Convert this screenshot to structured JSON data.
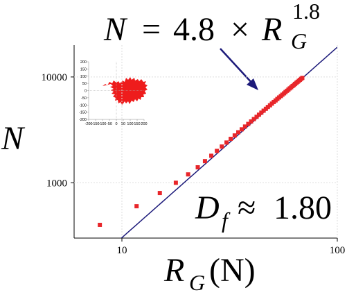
{
  "chart_data": {
    "type": "scatter",
    "annotation": {
      "lhs": "N",
      "operators": [
        "=",
        "×"
      ],
      "coefficient": 4.8,
      "symbol": "R",
      "subscript": "G",
      "exponent": 1.8
    },
    "dimension_label": {
      "symbol": "D",
      "subscript": "f",
      "relation": "≈",
      "value": "1.80"
    },
    "x_label": {
      "symbol": "R",
      "subscript": "G",
      "rest": "(N)"
    },
    "y_label": "N",
    "log_x": true,
    "log_y": true,
    "grid": true,
    "xlim": [
      6,
      100
    ],
    "ylim": [
      300,
      20000
    ],
    "xticks": [
      10,
      100
    ],
    "yticks": [
      1000,
      10000
    ],
    "color": "#e8262a",
    "fit_color": "#1c1a7a",
    "fit": {
      "coefficient": 4.8,
      "exponent": 1.8
    },
    "x": [
      7.9,
      11.7,
      15,
      17.8,
      20.3,
      22.5,
      24.3,
      26.0,
      27.6,
      29.1,
      30.6,
      32.0,
      33.4,
      34.7,
      36.0,
      37.3,
      38.6,
      39.8,
      41.0,
      42.2,
      43.3,
      44.4,
      45.5,
      46.6,
      47.6,
      48.7,
      49.7,
      50.7,
      51.7,
      52.7,
      53.7,
      54.7,
      55.6,
      56.6,
      57.5,
      58.4,
      59.3,
      60.2,
      61.1,
      62.0,
      62.9,
      63.7,
      64.6,
      65.4,
      66.3,
      67.1,
      68.0,
      68.8
    ],
    "values": [
      400,
      600,
      800,
      1000,
      1200,
      1400,
      1600,
      1800,
      2000,
      2200,
      2400,
      2600,
      2800,
      3000,
      3200,
      3400,
      3600,
      3800,
      4000,
      4200,
      4400,
      4600,
      4800,
      5000,
      5200,
      5400,
      5600,
      5800,
      6000,
      6200,
      6400,
      6600,
      6800,
      7000,
      7200,
      7400,
      7600,
      7800,
      8000,
      8200,
      8400,
      8600,
      8800,
      9000,
      9200,
      9400,
      9600,
      9800
    ],
    "inset": {
      "xlim": [
        -200,
        200
      ],
      "ylim": [
        -200,
        200
      ],
      "xticks": [
        -200,
        -150,
        -100,
        -50,
        0,
        50,
        100,
        150,
        200
      ],
      "yticks": [
        -200,
        -150,
        -100,
        -50,
        0,
        50,
        100,
        150,
        200
      ]
    }
  }
}
